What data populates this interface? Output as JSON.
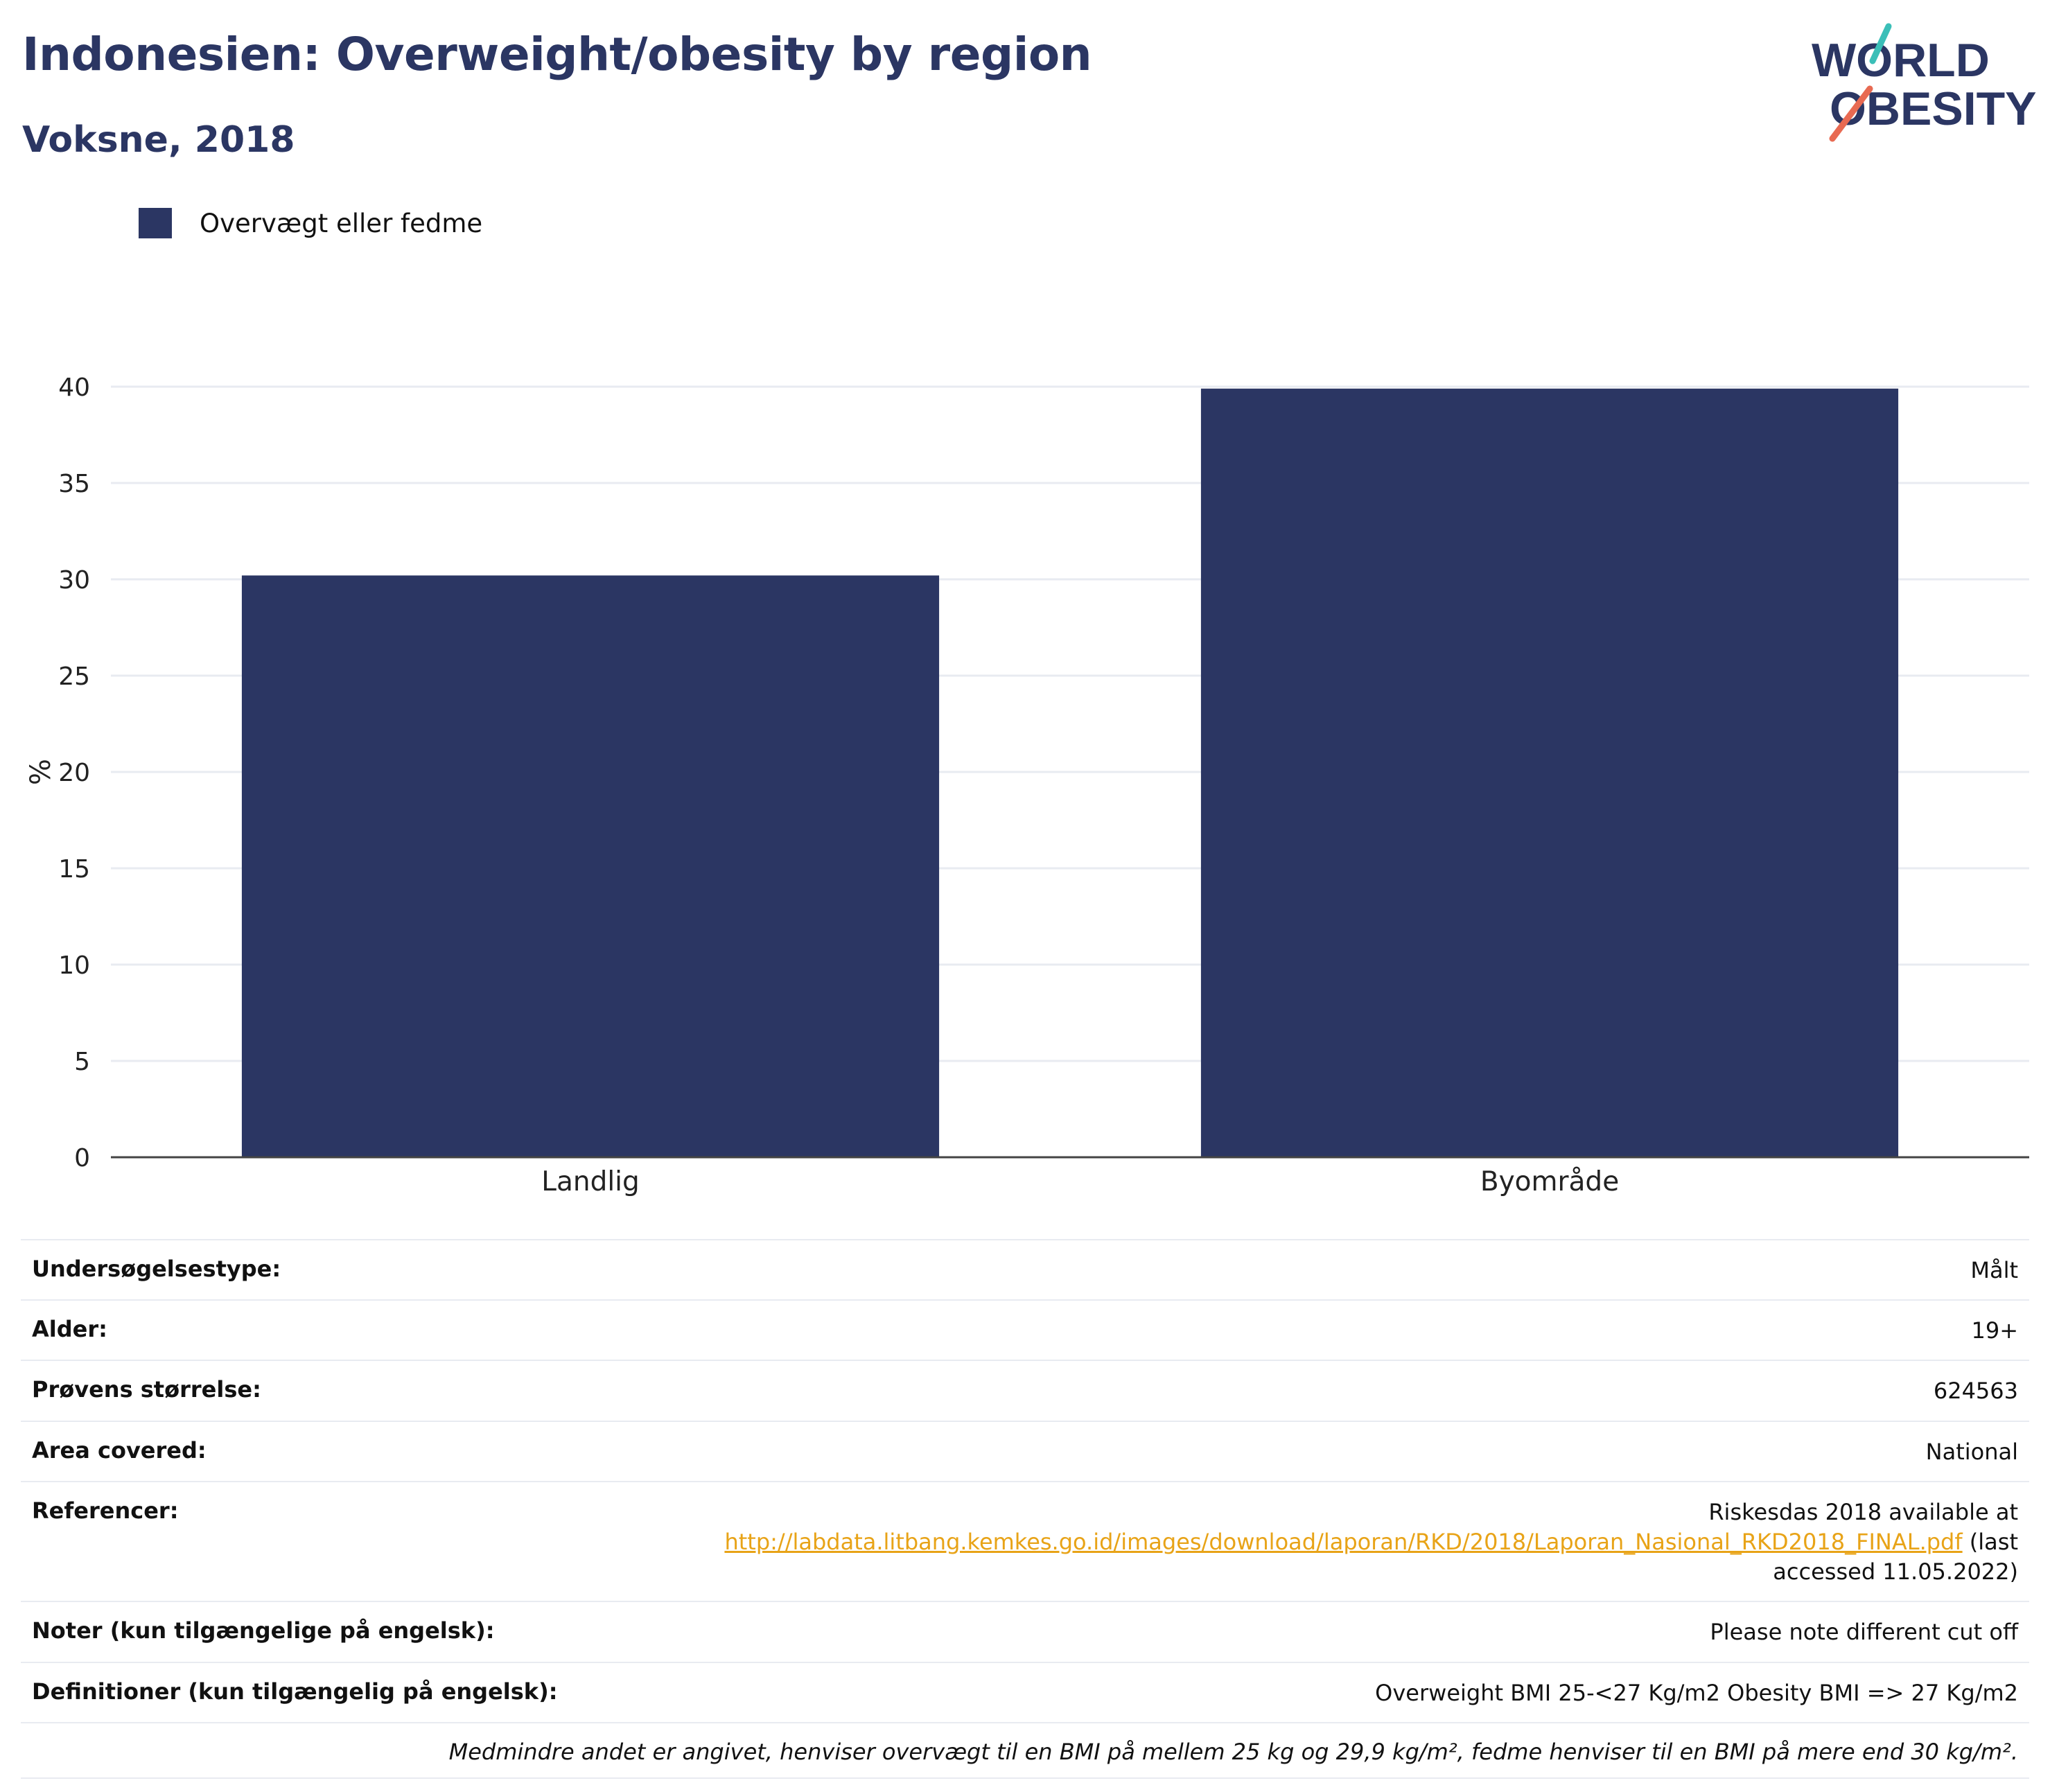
{
  "header": {
    "title": "Indonesien: Overweight/obesity by region",
    "subtitle": "Voksne, 2018"
  },
  "logo": {
    "line1": "WORLD",
    "line2": "OBESITY"
  },
  "colors": {
    "bar": "#2b3663",
    "title": "#2b3663",
    "link": "#e8a317",
    "grid": "#e8ebf1"
  },
  "chart_data": {
    "type": "bar",
    "categories": [
      "Landlig",
      "Byområde"
    ],
    "series": [
      {
        "name": "Overvægt eller fedme",
        "values": [
          30.2,
          39.9
        ]
      }
    ],
    "ylabel": "%",
    "ylim": [
      0,
      40
    ],
    "yticks": [
      0,
      5,
      10,
      15,
      20,
      25,
      30,
      35,
      40
    ],
    "grid": true,
    "legend": "top-left"
  },
  "info": {
    "survey_type": {
      "label": "Undersøgelsestype:",
      "value": "Målt"
    },
    "age": {
      "label": "Alder:",
      "value": "19+"
    },
    "sample_size": {
      "label": "Prøvens størrelse:",
      "value": "624563"
    },
    "area": {
      "label": "Area covered:",
      "value": "National"
    },
    "references": {
      "label": "Referencer:",
      "text_before": "Riskesdas 2018 available at",
      "link": "http://labdata.litbang.kemkes.go.id/images/download/laporan/RKD/2018/Laporan_Nasional_RKD2018_FINAL.pdf",
      "text_after": " (last accessed 11.05.2022)"
    },
    "notes": {
      "label": "Noter (kun tilgængelige på engelsk):",
      "value": "Please note different cut off"
    },
    "definitions": {
      "label": "Definitioner (kun tilgængelig på engelsk):",
      "value": "Overweight BMI 25-<27 Kg/m2 Obesity BMI => 27 Kg/m2"
    },
    "footnote": "Medmindre andet er angivet, henviser overvægt til en BMI på mellem 25 kg og 29,9 kg/m², fedme henviser til en BMI på mere end 30 kg/m²."
  }
}
